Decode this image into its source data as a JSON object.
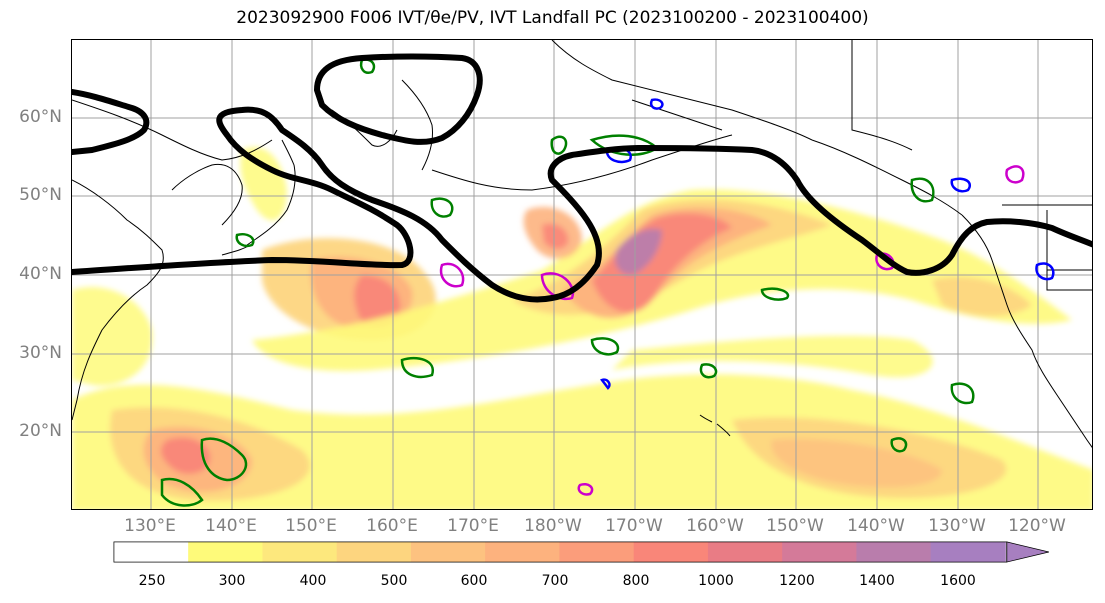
{
  "title": "2023092900 F006 IVT/θe/PV, IVT Landfall PC (2023100200 - 2023100400)",
  "lat_labels": [
    "60°N",
    "50°N",
    "40°N",
    "30°N",
    "20°N"
  ],
  "lon_labels": [
    "130°E",
    "140°E",
    "150°E",
    "160°E",
    "170°E",
    "180°W",
    "170°W",
    "160°W",
    "150°W",
    "140°W",
    "130°W",
    "120°W"
  ],
  "colorbar": {
    "ticks": [
      "250",
      "300",
      "400",
      "500",
      "600",
      "700",
      "800",
      "1000",
      "1200",
      "1400",
      "1600"
    ],
    "colors": [
      "#ffffff",
      "#fefa7a",
      "#fde87d",
      "#fdd57f",
      "#fdc280",
      "#fdb27e",
      "#fb9d7b",
      "#f98679",
      "#e97c85",
      "#d47a99",
      "#b97dac",
      "#a77fc0"
    ]
  },
  "legend_colors": {
    "pv_contour": "#000000",
    "theta_e_contour": "#008000",
    "blue_contour": "#0000ff",
    "magenta_contour": "#cc00cc",
    "coastline": "#000000",
    "grid": "#a0a0a0"
  }
}
